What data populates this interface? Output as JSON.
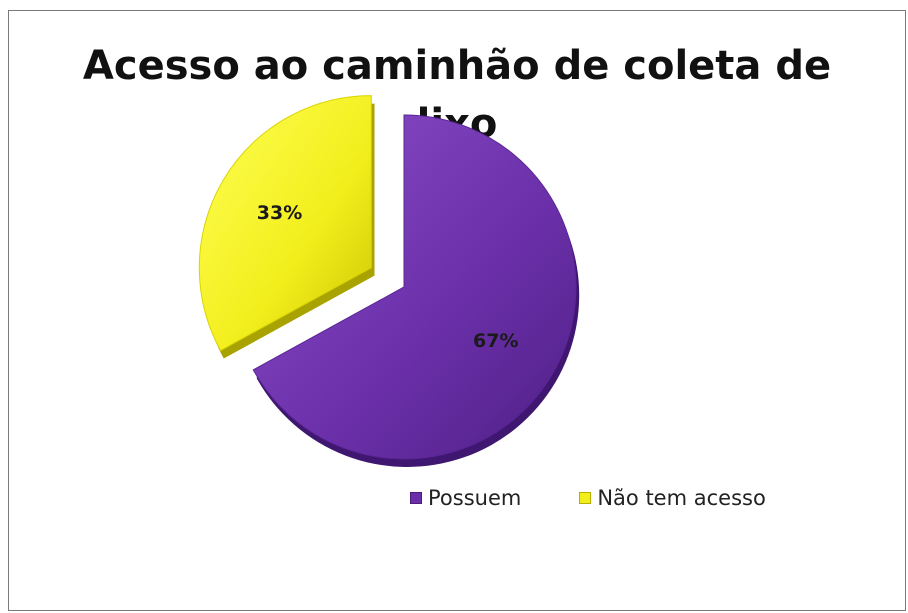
{
  "chart_data": {
    "type": "pie",
    "title_lines": [
      "Acesso ao caminhão de coleta de",
      "lixo"
    ],
    "slices": [
      {
        "label": "Possuem",
        "value": 67,
        "display": "67%",
        "color": "#6a2fa8"
      },
      {
        "label": "Não tem acesso",
        "value": 33,
        "display": "33%",
        "color": "#f2ee1c"
      }
    ],
    "legend_position": "bottom-right"
  }
}
